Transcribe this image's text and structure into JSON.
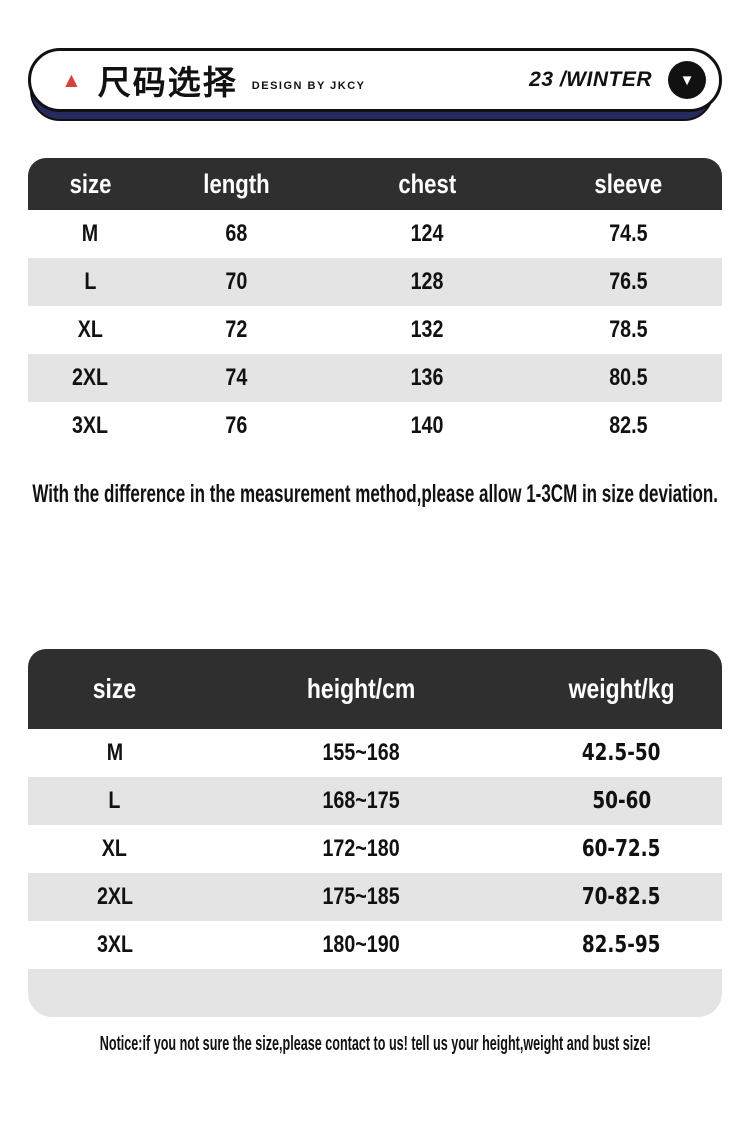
{
  "header": {
    "triangle_icon": "▲",
    "title_cn": "尺码选择",
    "design_by": "DESIGN  BY JKCY",
    "season": "23 /WINTER",
    "pin_icon": "▼"
  },
  "size_table": {
    "columns": [
      "size",
      "length",
      "chest",
      "sleeve"
    ],
    "rows": [
      [
        "M",
        "68",
        "124",
        "74.5"
      ],
      [
        "L",
        "70",
        "128",
        "76.5"
      ],
      [
        "XL",
        "72",
        "132",
        "78.5"
      ],
      [
        "2XL",
        "74",
        "136",
        "80.5"
      ],
      [
        "3XL",
        "76",
        "140",
        "82.5"
      ]
    ]
  },
  "deviation_note": "With the difference in the measurement method,please allow 1-3CM in size deviation.",
  "body_table": {
    "columns": [
      "size",
      "height/cm",
      "weight/kg"
    ],
    "rows": [
      [
        "M",
        "155~168",
        "42.5-50"
      ],
      [
        "L",
        "168~175",
        "50-60"
      ],
      [
        "XL",
        "172~180",
        "60-72.5"
      ],
      [
        "2XL",
        "175~185",
        "70-82.5"
      ],
      [
        "3XL",
        "180~190",
        "82.5-95"
      ]
    ]
  },
  "notice": "Notice:if you not sure the size,please contact to us!  tell us your height,weight and bust size!",
  "colors": {
    "table_header_bg": "#2f2f2f",
    "row_alt_bg": "#e4e4e4",
    "shadow_navy": "#262b5f",
    "accent_red": "#d6423a",
    "text": "#111111"
  }
}
